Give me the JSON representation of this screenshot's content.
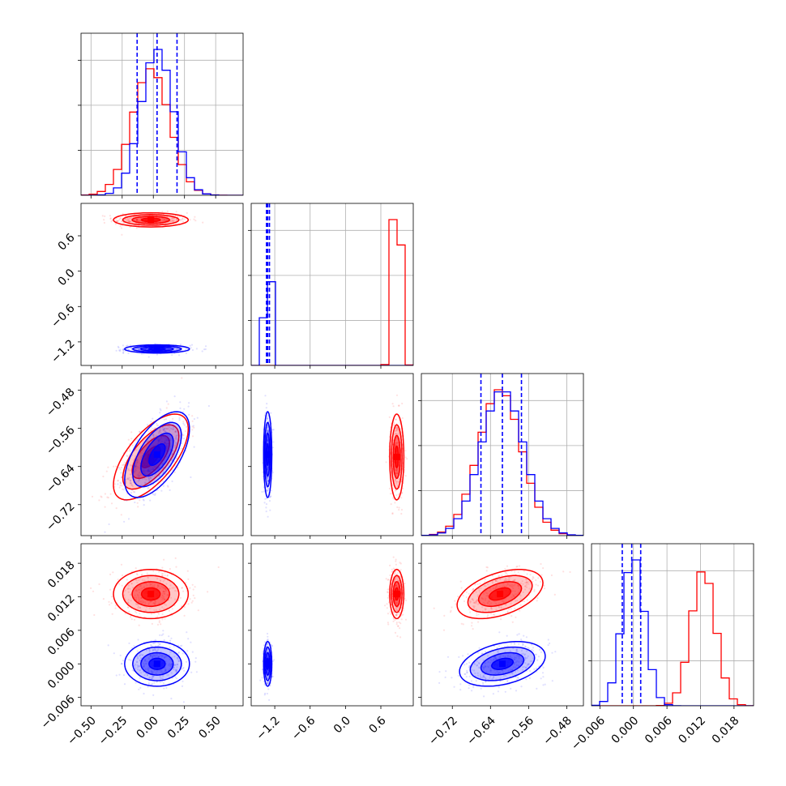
{
  "chart_data": {
    "type": "corner",
    "grid": true,
    "n_params": 4,
    "series": [
      {
        "color": "#ff0000",
        "mean": [
          -0.02,
          0.87,
          -0.62,
          0.0125
        ],
        "sd": [
          0.15,
          0.06,
          0.045,
          0.0022
        ],
        "corr": {
          "0-2": 0.65,
          "2-3": 0.45
        }
      },
      {
        "color": "#0000ff",
        "mean": [
          0.03,
          -1.32,
          -0.615,
          0.0
        ],
        "sd": [
          0.13,
          0.035,
          0.045,
          0.002
        ],
        "corr": {
          "0-2": 0.6,
          "2-3": 0.35
        }
      }
    ],
    "quantile_lines": {
      "color": "#0000ff",
      "values": [
        [
          -0.13,
          0.03,
          0.19
        ],
        [
          -1.34,
          -1.32,
          -1.29
        ],
        [
          -0.66,
          -0.615,
          -0.575
        ],
        [
          -0.002,
          -0.0003,
          0.0013
        ]
      ]
    },
    "axes": [
      {
        "range": [
          -0.58,
          0.72
        ],
        "ticks": [
          -0.5,
          -0.25,
          0.0,
          0.25,
          0.5
        ],
        "tick_labels": [
          "−0.50",
          "−0.25",
          "0.00",
          "0.25",
          "0.50"
        ]
      },
      {
        "range": [
          -1.6,
          1.15
        ],
        "ticks": [
          -1.2,
          -0.6,
          0.0,
          0.6
        ],
        "tick_labels": [
          "−1.2",
          "−0.6",
          "0.0",
          "0.6"
        ]
      },
      {
        "range": [
          -0.785,
          -0.445
        ],
        "ticks": [
          -0.72,
          -0.64,
          -0.56,
          -0.48
        ],
        "tick_labels": [
          "−0.72",
          "−0.64",
          "−0.56",
          "−0.48"
        ]
      },
      {
        "range": [
          -0.0075,
          0.0215
        ],
        "ticks": [
          -0.006,
          0.0,
          0.006,
          0.012,
          0.018
        ],
        "tick_labels": [
          "−0.006",
          "0.000",
          "0.006",
          "0.012",
          "0.018"
        ]
      }
    ]
  }
}
